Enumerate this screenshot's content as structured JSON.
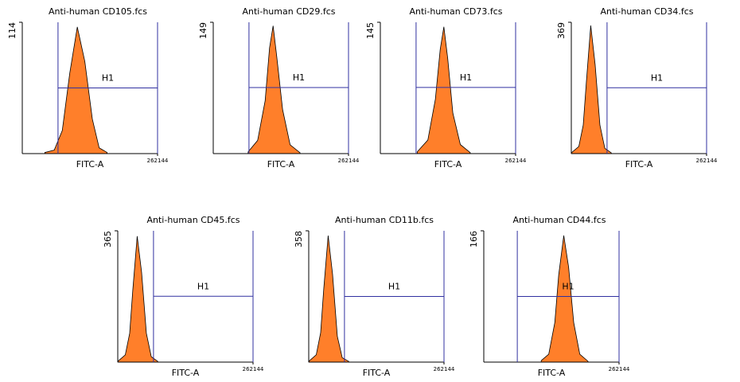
{
  "chart_data": [
    {
      "type": "area",
      "title": "Anti-human CD105.fcs",
      "x_label": "FITC-A",
      "log_x": true,
      "xlim": [
        1,
        262144
      ],
      "xticks": [
        262144
      ],
      "ylim": [
        0,
        114
      ],
      "yticks": [
        114
      ],
      "color": "#ff7f2a",
      "x": [
        8,
        19,
        40,
        80,
        160,
        320,
        640,
        1200,
        2500
      ],
      "values": [
        1,
        3,
        20,
        70,
        110,
        80,
        30,
        5,
        1
      ],
      "gate": {
        "label": "H1",
        "xlim": [
          27,
          262144
        ],
        "y": 57
      }
    },
    {
      "type": "area",
      "title": "Anti-human CD29.fcs",
      "x_label": "FITC-A",
      "log_x": true,
      "xlim": [
        1,
        262144
      ],
      "xticks": [
        262144
      ],
      "ylim": [
        0,
        149
      ],
      "yticks": [
        149
      ],
      "color": "#ff7f2a",
      "x": [
        25,
        60,
        120,
        180,
        250,
        350,
        600,
        1200,
        3000
      ],
      "values": [
        2,
        15,
        60,
        120,
        145,
        110,
        50,
        10,
        1
      ],
      "gate": {
        "label": "H1",
        "xlim": [
          27,
          262144
        ],
        "y": 75
      }
    },
    {
      "type": "area",
      "title": "Anti-human CD73.fcs",
      "x_label": "FITC-A",
      "log_x": true,
      "xlim": [
        1,
        262144
      ],
      "xticks": [
        262144
      ],
      "ylim": [
        0,
        145
      ],
      "yticks": [
        145
      ],
      "color": "#ff7f2a",
      "x": [
        30,
        80,
        160,
        250,
        350,
        500,
        800,
        1600,
        4000
      ],
      "values": [
        2,
        15,
        60,
        115,
        140,
        105,
        45,
        10,
        1
      ],
      "gate": {
        "label": "H1",
        "xlim": [
          27,
          262144
        ],
        "y": 73
      }
    },
    {
      "type": "area",
      "title": "Anti-human CD34.fcs",
      "x_label": "FITC-A",
      "log_x": true,
      "xlim": [
        1,
        262144
      ],
      "xticks": [
        262144
      ],
      "ylim": [
        0,
        369
      ],
      "yticks": [
        369
      ],
      "color": "#ff7f2a",
      "x": [
        1,
        2,
        3,
        4,
        6,
        9,
        14,
        22,
        40
      ],
      "values": [
        2,
        20,
        80,
        200,
        360,
        250,
        80,
        15,
        2
      ],
      "gate": {
        "label": "H1",
        "xlim": [
          27,
          262144
        ],
        "y": 185
      }
    },
    {
      "type": "area",
      "title": "Anti-human CD45.fcs",
      "x_label": "FITC-A",
      "log_x": true,
      "xlim": [
        1,
        262144
      ],
      "xticks": [
        262144
      ],
      "ylim": [
        0,
        365
      ],
      "yticks": [
        365
      ],
      "color": "#ff7f2a",
      "x": [
        1,
        2,
        3,
        4,
        6,
        9,
        14,
        22,
        40
      ],
      "values": [
        2,
        20,
        80,
        200,
        350,
        250,
        80,
        15,
        2
      ],
      "gate": {
        "label": "H1",
        "xlim": [
          27,
          262144
        ],
        "y": 183
      }
    },
    {
      "type": "area",
      "title": "Anti-human CD11b.fcs",
      "x_label": "FITC-A",
      "log_x": true,
      "xlim": [
        1,
        262144
      ],
      "xticks": [
        262144
      ],
      "ylim": [
        0,
        358
      ],
      "yticks": [
        358
      ],
      "color": "#ff7f2a",
      "x": [
        1,
        2,
        3,
        4,
        6,
        9,
        14,
        22,
        40
      ],
      "values": [
        2,
        20,
        80,
        200,
        345,
        240,
        70,
        12,
        2
      ],
      "gate": {
        "label": "H1",
        "xlim": [
          27,
          262144
        ],
        "y": 179
      }
    },
    {
      "type": "area",
      "title": "Anti-human CD44.fcs",
      "x_label": "FITC-A",
      "log_x": true,
      "xlim": [
        1,
        262144
      ],
      "xticks": [
        262144
      ],
      "ylim": [
        0,
        166
      ],
      "yticks": [
        166
      ],
      "color": "#ff7f2a",
      "x": [
        200,
        400,
        700,
        1000,
        1600,
        2500,
        4000,
        7000,
        15000
      ],
      "values": [
        2,
        10,
        50,
        110,
        160,
        120,
        50,
        10,
        1
      ],
      "gate": {
        "label": "H1",
        "xlim": [
          22,
          262144
        ],
        "y": 83
      }
    }
  ]
}
